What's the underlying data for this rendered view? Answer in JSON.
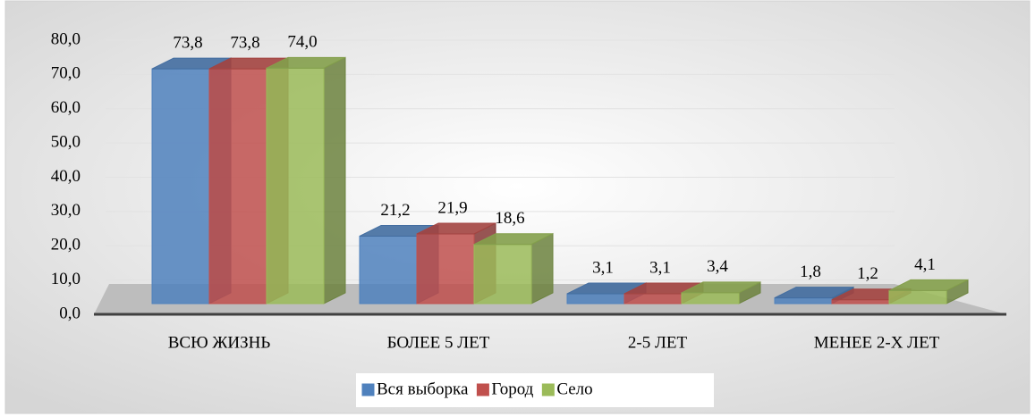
{
  "chart_data": {
    "type": "bar3d",
    "categories": [
      "ВСЮ ЖИЗНЬ",
      "БОЛЕЕ 5 ЛЕТ",
      "2-5 ЛЕТ",
      "МЕНЕЕ 2-Х ЛЕТ"
    ],
    "series": [
      {
        "name": "Вся выборка",
        "color": "#4f81bd",
        "values": [
          73.8,
          21.2,
          3.1,
          1.8
        ],
        "value_labels": [
          "73,8",
          "21,2",
          "3,1",
          "1,8"
        ]
      },
      {
        "name": "Город",
        "color": "#c0504d",
        "values": [
          73.8,
          21.9,
          3.1,
          1.2
        ],
        "value_labels": [
          "73,8",
          "21,9",
          "3,1",
          "1,2"
        ]
      },
      {
        "name": "Село",
        "color": "#9bbb59",
        "values": [
          74.0,
          18.6,
          3.4,
          4.1
        ],
        "value_labels": [
          "74,0",
          "18,6",
          "3,4",
          "4,1"
        ]
      }
    ],
    "ylim": [
      0,
      80
    ],
    "yticks": [
      {
        "value": 0,
        "label": "0,0"
      },
      {
        "value": 10,
        "label": "10,0"
      },
      {
        "value": 20,
        "label": "20,0"
      },
      {
        "value": 30,
        "label": "30,0"
      },
      {
        "value": 40,
        "label": "40,0"
      },
      {
        "value": 50,
        "label": "50,0"
      },
      {
        "value": 60,
        "label": "60,0"
      },
      {
        "value": 70,
        "label": "70,0"
      },
      {
        "value": 80,
        "label": "80,0"
      }
    ],
    "grid": true,
    "legend": "bottom"
  }
}
